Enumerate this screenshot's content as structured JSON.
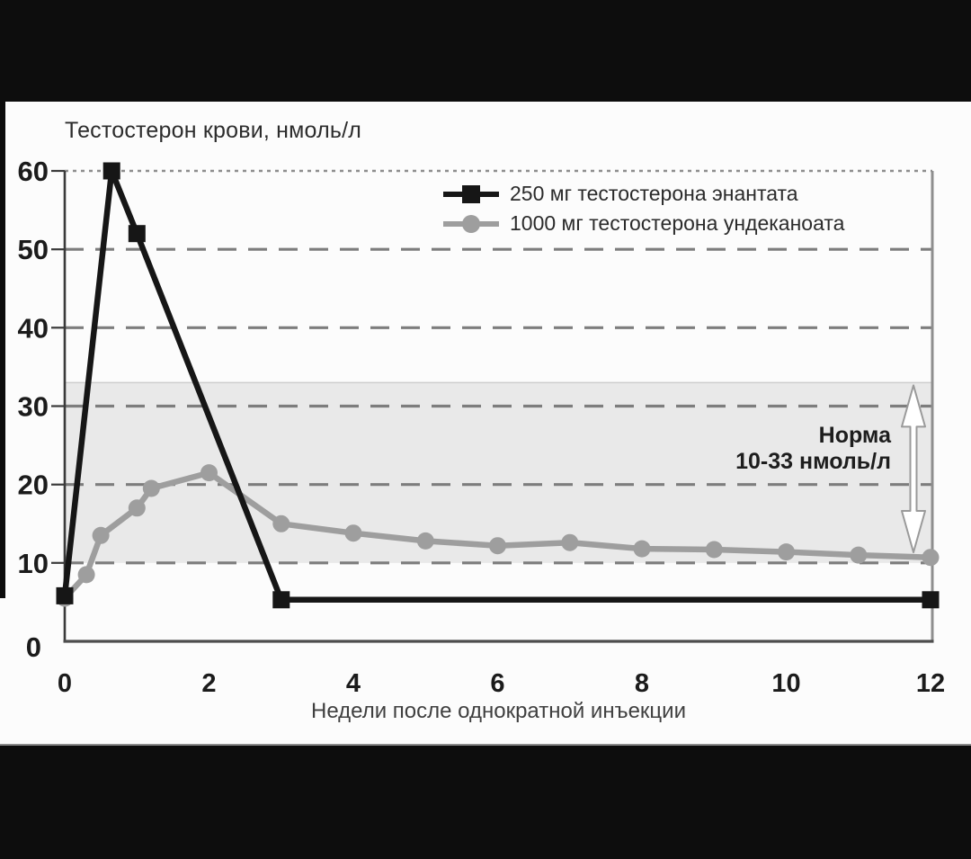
{
  "colors": {
    "letterbox": "#0d0d0d",
    "panel_background": "#fcfcfc",
    "grid_dashed": "#7d7d7d",
    "grid_dotted_60": "#8d8d8d",
    "axis": "#3a3a3a",
    "right_border": "#8e8e8e",
    "tick_label": "#1b1b1b",
    "arrow_fill": "#ffffff",
    "arrow_stroke": "#9a9a9a"
  },
  "chart_data": {
    "type": "line",
    "title": "Тестостерон крови, нмоль/л",
    "xlabel": "Недели после однократной инъекции",
    "ylabel": "",
    "xlim": [
      0,
      12
    ],
    "ylim": [
      0,
      60
    ],
    "x_ticks": [
      0,
      2,
      4,
      6,
      8,
      10,
      12
    ],
    "y_ticks": [
      0,
      10,
      20,
      30,
      40,
      50,
      60
    ],
    "grid": "horizontal dashed gray lines at 10-50, fine dotted line at 60, grid on",
    "legend_position": "top-right inside plot",
    "series": [
      {
        "name": "250 мг тестостерона энантата",
        "key": "enanthate-250",
        "color": "#161616",
        "marker": "square",
        "x": [
          0,
          0.65,
          1,
          3,
          12
        ],
        "y": [
          5.8,
          60,
          52,
          5.3,
          5.3
        ]
      },
      {
        "name": "1000 мг тестостерона ундеканоата",
        "key": "undecanoate-1000",
        "color": "#9e9e9e",
        "marker": "circle",
        "x": [
          0,
          0.3,
          0.5,
          1,
          1.2,
          2,
          3,
          4,
          5,
          6,
          7,
          8,
          9,
          10,
          11,
          12
        ],
        "y": [
          5.5,
          8.5,
          13.5,
          17,
          19.5,
          21.5,
          15,
          13.8,
          12.8,
          12.2,
          12.6,
          11.8,
          11.7,
          11.4,
          11,
          10.7
        ]
      }
    ],
    "normal_band": {
      "label_line1": "Норма",
      "label_line2": "10-33 нмоль/л",
      "range": [
        10,
        33
      ],
      "fill": "#e9e9e9",
      "edge": "#cdcdcd"
    }
  }
}
